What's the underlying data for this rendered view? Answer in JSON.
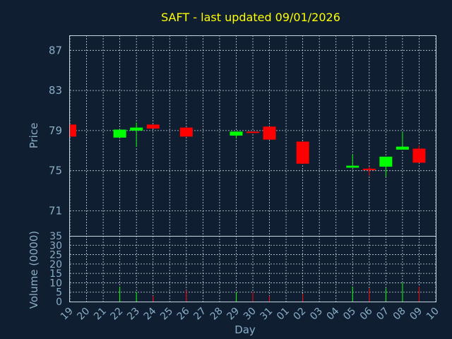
{
  "chart_data": {
    "type": "candlestick",
    "title": "SAFT - last updated 09/01/2026",
    "ylabel": "Price",
    "volume_ylabel": "Volume (0000)",
    "xlabel": "Day",
    "price_ylim": [
      68.5,
      88.5
    ],
    "price_yticks": [
      71,
      75,
      79,
      83,
      87
    ],
    "volume_ylim": [
      0,
      35
    ],
    "volume_yticks": [
      0,
      5,
      10,
      15,
      20,
      25,
      30,
      35
    ],
    "grid": true,
    "up_color": "#00ff00",
    "down_color": "#ff0000",
    "text_color": "#8aaec8",
    "title_color": "#ffff00",
    "background": "#0f1e30",
    "x_labels": [
      "19",
      "20",
      "21",
      "22",
      "23",
      "24",
      "25",
      "26",
      "27",
      "28",
      "29",
      "30",
      "31",
      "01",
      "02",
      "03",
      "04",
      "05",
      "06",
      "07",
      "08",
      "09",
      "10"
    ],
    "candles": [
      {
        "day": "19",
        "open": 79.6,
        "close": 78.4,
        "high": 79.6,
        "low": 78.4,
        "volume": 0
      },
      {
        "day": "22",
        "open": 78.3,
        "close": 79.1,
        "high": 79.1,
        "low": 78.3,
        "volume": 8
      },
      {
        "day": "23",
        "open": 79.0,
        "close": 79.3,
        "high": 79.8,
        "low": 77.4,
        "volume": 5
      },
      {
        "day": "24",
        "open": 79.6,
        "close": 79.2,
        "high": 79.6,
        "low": 79.2,
        "volume": 3
      },
      {
        "day": "26",
        "open": 79.3,
        "close": 78.4,
        "high": 79.3,
        "low": 78.4,
        "volume": 6
      },
      {
        "day": "29",
        "open": 78.5,
        "close": 78.9,
        "high": 78.9,
        "low": 78.2,
        "volume": 5
      },
      {
        "day": "30",
        "open": 78.9,
        "close": 78.8,
        "high": 78.9,
        "low": 78.8,
        "volume": 5
      },
      {
        "day": "31",
        "open": 79.4,
        "close": 78.1,
        "high": 79.4,
        "low": 78.1,
        "volume": 3
      },
      {
        "day": "02",
        "open": 77.9,
        "close": 75.7,
        "high": 77.9,
        "low": 75.7,
        "volume": 4
      },
      {
        "day": "05",
        "open": 75.3,
        "close": 75.5,
        "high": 76.6,
        "low": 75.3,
        "volume": 8
      },
      {
        "day": "06",
        "open": 75.2,
        "close": 75.1,
        "high": 75.4,
        "low": 74.5,
        "volume": 7
      },
      {
        "day": "07",
        "open": 75.4,
        "close": 76.4,
        "high": 76.4,
        "low": 74.4,
        "volume": 7
      },
      {
        "day": "08",
        "open": 77.1,
        "close": 77.4,
        "high": 78.9,
        "low": 77.1,
        "volume": 10
      },
      {
        "day": "09",
        "open": 77.2,
        "close": 75.8,
        "high": 77.5,
        "low": 75.8,
        "volume": 8
      }
    ]
  }
}
